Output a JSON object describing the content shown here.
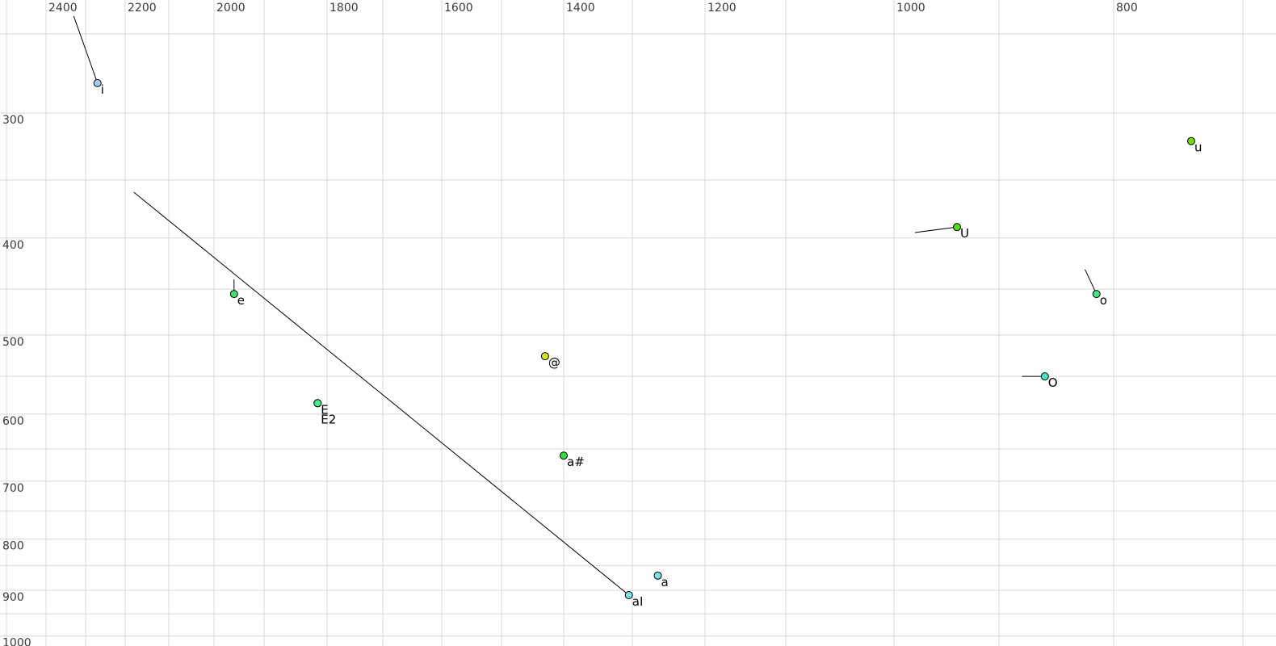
{
  "page": {
    "background_color": "#ffffff",
    "grid_color": "#d8d8d8",
    "tick_label_color": "#3a3a3a",
    "point_label_color": "#000000",
    "trajectory_color": "#000000"
  },
  "chart_data": {
    "type": "scatter",
    "title": "",
    "xlabel": "",
    "ylabel": "",
    "legend": null,
    "x_axis": {
      "position": "top",
      "unit": "Hz",
      "tick_labels": [
        "2400",
        "2200",
        "2000",
        "1800",
        "1600",
        "1400",
        "1200",
        "1000",
        "800"
      ],
      "gridlines_hz": [
        2500,
        2400,
        2300,
        2200,
        2100,
        2000,
        1900,
        1800,
        1700,
        1600,
        1500,
        1400,
        1300,
        1200,
        1100,
        1000,
        900,
        800,
        700
      ],
      "direction": "values decrease to the right",
      "scale": "nonlinear (log-like)",
      "range": [
        2500,
        700
      ]
    },
    "y_axis": {
      "position": "left",
      "unit": "Hz",
      "tick_labels": [
        "300",
        "400",
        "500",
        "600",
        "700",
        "800",
        "900",
        "1000"
      ],
      "gridlines_hz": [
        250,
        300,
        350,
        400,
        450,
        500,
        550,
        600,
        650,
        700,
        750,
        800,
        850,
        900,
        950,
        1000
      ],
      "direction": "values increase downward",
      "scale": "log",
      "range": [
        230,
        1010
      ]
    },
    "grid": true,
    "points": [
      {
        "label": "i",
        "f2": 2270,
        "f1": 280,
        "color": "#a6c9f2",
        "tail": {
          "f2": 2330,
          "f1": 240
        },
        "label_row": 0
      },
      {
        "label": "e",
        "f2": 1960,
        "f1": 455,
        "color": "#43de71",
        "tail": {
          "f2": 1960,
          "f1": 440
        },
        "label_row": 0
      },
      {
        "label": "E",
        "f2": 1815,
        "f1": 585,
        "color": "#4beb8c",
        "tail": null,
        "label_row": 0
      },
      {
        "label": "E2",
        "f2": 1815,
        "f1": 585,
        "color": "#4beb8c",
        "tail": null,
        "label_row": 1
      },
      {
        "label": "@",
        "f2": 1430,
        "f1": 525,
        "color": "#d3e321",
        "tail": null,
        "label_row": 0
      },
      {
        "label": "a#",
        "f2": 1400,
        "f1": 660,
        "color": "#36dc3f",
        "tail": null,
        "label_row": 0
      },
      {
        "label": "a",
        "f2": 1265,
        "f1": 870,
        "color": "#7fe1e4",
        "tail": null,
        "label_row": 0
      },
      {
        "label": "aI",
        "f2": 1305,
        "f1": 910,
        "color": "#7fe1e4",
        "tail": {
          "f2": 2180,
          "f1": 360
        },
        "label_row": 0
      },
      {
        "label": "U",
        "f2": 940,
        "f1": 390,
        "color": "#52de17",
        "tail": {
          "f2": 980,
          "f1": 395
        },
        "label_row": 0
      },
      {
        "label": "u",
        "f2": 740,
        "f1": 320,
        "color": "#70dc0c",
        "tail": null,
        "label_row": 0
      },
      {
        "label": "o",
        "f2": 815,
        "f1": 455,
        "color": "#43e38c",
        "tail": {
          "f2": 825,
          "f1": 430
        },
        "label_row": 0
      },
      {
        "label": "O",
        "f2": 860,
        "f1": 550,
        "color": "#4de2cc",
        "tail": {
          "f2": 880,
          "f1": 550
        },
        "label_row": 0
      }
    ]
  }
}
